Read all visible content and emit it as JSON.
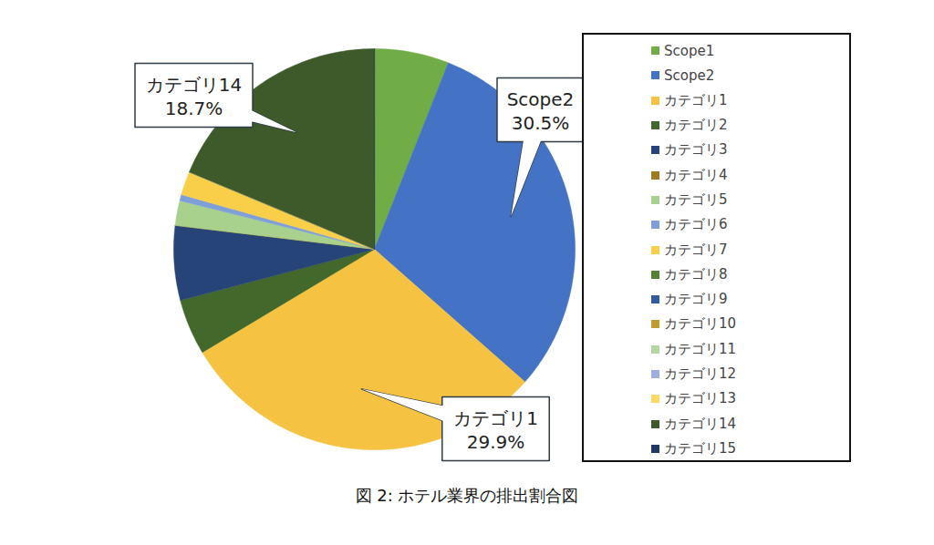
{
  "chart_data": {
    "type": "pie",
    "title": "図 2: ホテル業界の排出割合図",
    "categories": [
      "Scope1",
      "Scope2",
      "カテゴリ1",
      "カテゴリ2",
      "カテゴリ3",
      "カテゴリ4",
      "カテゴリ5",
      "カテゴリ6",
      "カテゴリ7",
      "カテゴリ8",
      "カテゴリ9",
      "カテゴリ10",
      "カテゴリ11",
      "カテゴリ12",
      "カテゴリ13",
      "カテゴリ14",
      "カテゴリ15"
    ],
    "values": [
      6,
      30.5,
      29.9,
      4.5,
      6,
      0,
      2,
      0.5,
      1.9,
      0,
      0,
      0,
      0,
      0,
      0,
      18.7,
      0
    ],
    "value_labels": [
      null,
      "30.5%",
      "29.9%",
      null,
      null,
      null,
      null,
      null,
      null,
      null,
      null,
      null,
      null,
      null,
      null,
      "18.7%",
      null
    ],
    "colors": [
      "#70ad47",
      "#4472c4",
      "#f5c242",
      "#43682b",
      "#264478",
      "#9e7c1d",
      "#a9d18e",
      "#7f9fd9",
      "#f9cf4a",
      "#548235",
      "#335aa1",
      "#bf9b30",
      "#b4d7a0",
      "#9dafe0",
      "#ffd966",
      "#3f5a2a",
      "#203864"
    ],
    "data_labels": true,
    "legend": "right"
  }
}
